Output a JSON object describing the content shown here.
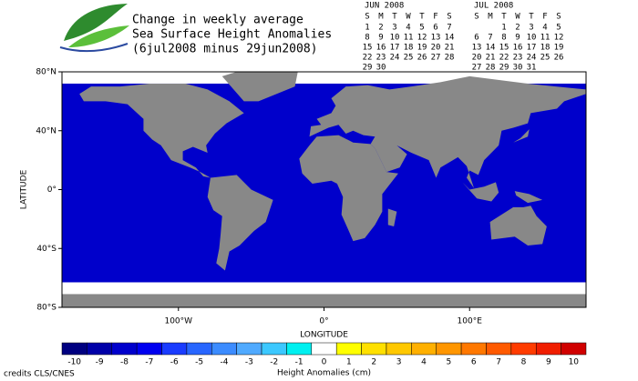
{
  "header": {
    "title_lines": [
      "Change in weekly average",
      "Sea Surface Height Anomalies",
      "(6jul2008 minus 29jun2008)"
    ]
  },
  "calendars": [
    {
      "month": "JUN 2008",
      "weekdays": [
        "S",
        "M",
        "T",
        "W",
        "T",
        "F",
        "S"
      ],
      "weeks": [
        [
          1,
          2,
          3,
          4,
          5,
          6,
          7
        ],
        [
          8,
          9,
          10,
          11,
          12,
          13,
          14
        ],
        [
          15,
          16,
          17,
          18,
          19,
          20,
          21
        ],
        [
          22,
          23,
          24,
          25,
          26,
          27,
          28
        ],
        [
          29,
          30
        ]
      ],
      "highlight_weeks": [
        4
      ],
      "highlight_color": "#2020a0"
    },
    {
      "month": "JUL 2008",
      "weekdays": [
        "S",
        "M",
        "T",
        "W",
        "T",
        "F",
        "S"
      ],
      "weeks": [
        [
          null,
          null,
          1,
          2,
          3,
          4,
          5
        ],
        [
          6,
          7,
          8,
          9,
          10,
          11,
          12
        ],
        [
          13,
          14,
          15,
          16,
          17,
          18,
          19
        ],
        [
          20,
          21,
          22,
          23,
          24,
          25,
          26
        ],
        [
          27,
          28,
          29,
          30,
          31
        ]
      ],
      "highlight_weeks": [
        0,
        1
      ],
      "highlight_color": "#2020a0"
    }
  ],
  "map": {
    "ylabel": "LATITUDE",
    "xlabel": "LONGITUDE",
    "xlim": [
      -180,
      180
    ],
    "ylim": [
      -80,
      80
    ],
    "yticks": [
      {
        "value": 80,
        "label": "80°N"
      },
      {
        "value": 40,
        "label": "40°N"
      },
      {
        "value": 0,
        "label": "0°"
      },
      {
        "value": -40,
        "label": "40°S"
      },
      {
        "value": -80,
        "label": "80°S"
      }
    ],
    "xticks": [
      {
        "value": -100,
        "label": "100°W"
      },
      {
        "value": 0,
        "label": "0°"
      },
      {
        "value": 100,
        "label": "100°E"
      }
    ]
  },
  "colorbar": {
    "label": "Height Anomalies (cm)",
    "ticks": [
      -10,
      -9,
      -8,
      -7,
      -6,
      -5,
      -4,
      -3,
      -2,
      -1,
      0,
      1,
      2,
      3,
      4,
      5,
      6,
      7,
      8,
      9,
      10
    ],
    "colors": [
      "#000080",
      "#0000a8",
      "#0000cc",
      "#0000f0",
      "#1a3cff",
      "#2866ff",
      "#3c8cff",
      "#50aaff",
      "#3cc8ff",
      "#00f0f0",
      "#ffffff",
      "#ffff00",
      "#ffe000",
      "#ffc800",
      "#ffb000",
      "#ff9600",
      "#ff7800",
      "#ff5a00",
      "#ff3c00",
      "#f01e00",
      "#d00000"
    ]
  },
  "credits": "credits CLS/CNES"
}
